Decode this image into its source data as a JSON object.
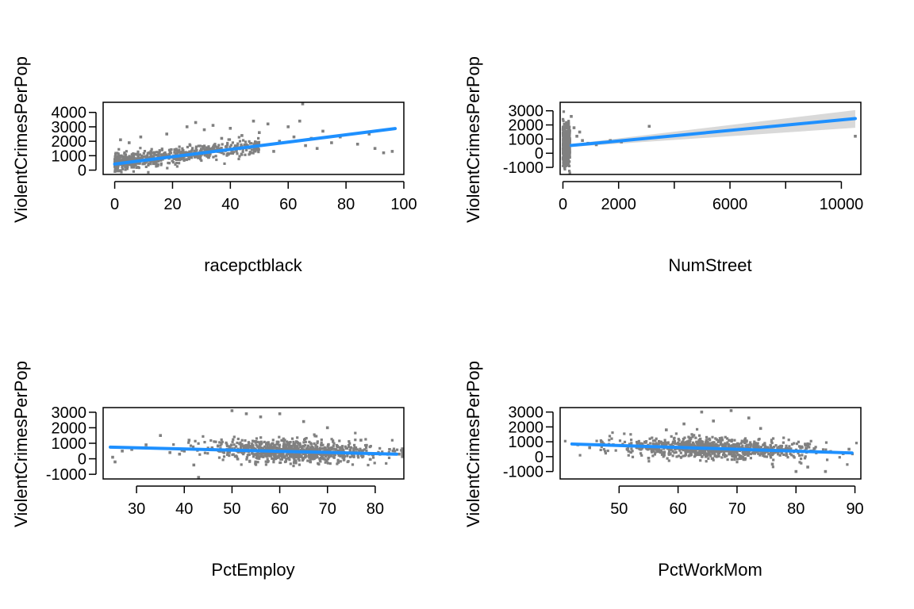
{
  "colors": {
    "points": "#808080",
    "fit_line": "#1E90FF",
    "confidence_band": "#D9D9D9",
    "axes": "#000000"
  },
  "chart_data": [
    {
      "type": "scatter",
      "title": "",
      "xlabel": "racepctblack",
      "ylabel": "ViolentCrimesPerPop",
      "xlim": [
        -4,
        100
      ],
      "ylim": [
        -300,
        4700
      ],
      "xticks": [
        0,
        20,
        40,
        60,
        80,
        100
      ],
      "yticks": [
        0,
        1000,
        2000,
        3000,
        4000
      ],
      "ytick_labels": [
        "0",
        "1000",
        "2000",
        "3000",
        "4000"
      ],
      "fit_line": {
        "x": [
          0,
          97
        ],
        "y": [
          420,
          2880
        ]
      },
      "band": null,
      "point_cloud": {
        "x_range": [
          0,
          50
        ],
        "y_center_start": 500,
        "y_center_end": 1700,
        "spread": 500,
        "count": 700
      },
      "points": [
        [
          2,
          2100
        ],
        [
          5,
          1900
        ],
        [
          9,
          2300
        ],
        [
          18,
          2500
        ],
        [
          25,
          3000
        ],
        [
          28,
          3300
        ],
        [
          31,
          2800
        ],
        [
          34,
          3100
        ],
        [
          37,
          2200
        ],
        [
          40,
          2900
        ],
        [
          44,
          2400
        ],
        [
          48,
          3400
        ],
        [
          50,
          2600
        ],
        [
          53,
          3200
        ],
        [
          55,
          1300
        ],
        [
          57,
          2000
        ],
        [
          60,
          3000
        ],
        [
          62,
          2300
        ],
        [
          64,
          3400
        ],
        [
          65,
          4750
        ],
        [
          66,
          1700
        ],
        [
          68,
          2200
        ],
        [
          70,
          1500
        ],
        [
          72,
          2700
        ],
        [
          75,
          1900
        ],
        [
          78,
          2300
        ],
        [
          84,
          1800
        ],
        [
          88,
          2500
        ],
        [
          90,
          1500
        ],
        [
          93,
          1200
        ],
        [
          96,
          1300
        ]
      ]
    },
    {
      "type": "scatter",
      "title": "",
      "xlabel": "NumStreet",
      "ylabel": "ViolentCrimesPerPop",
      "xlim": [
        -100,
        10700
      ],
      "ylim": [
        -1500,
        3600
      ],
      "xticks": [
        0,
        2000,
        4000,
        6000,
        8000,
        10000
      ],
      "xtick_labels": [
        "0",
        "2000",
        "",
        "6000",
        "",
        "10000"
      ],
      "yticks": [
        -1000,
        0,
        1000,
        2000,
        3000
      ],
      "ytick_labels": [
        "-1000",
        "0",
        "1000",
        "2000",
        "3000"
      ],
      "fit_line": {
        "x": [
          300,
          10500
        ],
        "y": [
          550,
          2450
        ]
      },
      "band": {
        "x": [
          300,
          10500
        ],
        "upper_start": 650,
        "upper_end": 3050,
        "lower_start": 450,
        "lower_end": 1800
      },
      "point_cloud": {
        "x_range": [
          0,
          250
        ],
        "y_center_start": 600,
        "y_center_end": 600,
        "spread": 1300,
        "count": 500
      },
      "points": [
        [
          300,
          2600
        ],
        [
          400,
          1800
        ],
        [
          500,
          1200
        ],
        [
          600,
          1500
        ],
        [
          700,
          900
        ],
        [
          900,
          700
        ],
        [
          1200,
          600
        ],
        [
          1700,
          900
        ],
        [
          2100,
          800
        ],
        [
          3100,
          1900
        ],
        [
          10500,
          1200
        ]
      ]
    },
    {
      "type": "scatter",
      "title": "",
      "xlabel": "PctEmploy",
      "ylabel": "ViolentCrimesPerPop",
      "xlim": [
        23,
        86
      ],
      "ylim": [
        -1300,
        3300
      ],
      "xticks": [
        30,
        40,
        50,
        60,
        70,
        80
      ],
      "yticks": [
        -1000,
        0,
        1000,
        2000,
        3000
      ],
      "ytick_labels": [
        "-1000",
        "0",
        "1000",
        "2000",
        "3000"
      ],
      "fit_line": {
        "x": [
          24.5,
          84.5
        ],
        "y": [
          750,
          300
        ]
      },
      "band": null,
      "point_cloud": {
        "x_range": [
          43,
          82
        ],
        "y_center_start": 650,
        "y_center_end": 350,
        "spread": 650,
        "count": 900
      },
      "points": [
        [
          25,
          100
        ],
        [
          25.5,
          -200
        ],
        [
          27,
          500
        ],
        [
          29,
          600
        ],
        [
          32,
          900
        ],
        [
          35,
          1500
        ],
        [
          37,
          400
        ],
        [
          39,
          300
        ],
        [
          40,
          500
        ],
        [
          41,
          1200
        ],
        [
          42,
          -400
        ],
        [
          43,
          -1200
        ],
        [
          50,
          3100
        ],
        [
          53,
          2900
        ],
        [
          56,
          2700
        ],
        [
          60,
          2900
        ],
        [
          65,
          2400
        ],
        [
          70,
          2000
        ],
        [
          77,
          1200
        ],
        [
          83,
          600
        ],
        [
          85,
          300
        ]
      ]
    },
    {
      "type": "scatter",
      "title": "",
      "xlabel": "PctWorkMom",
      "ylabel": "ViolentCrimesPerPop",
      "xlim": [
        40,
        91
      ],
      "ylim": [
        -1500,
        3300
      ],
      "xticks": [
        50,
        60,
        70,
        80,
        90
      ],
      "yticks": [
        -1000,
        0,
        1000,
        2000,
        3000
      ],
      "ytick_labels": [
        "-1000",
        "0",
        "1000",
        "2000",
        "3000"
      ],
      "fit_line": {
        "x": [
          42,
          89.5
        ],
        "y": [
          850,
          250
        ]
      },
      "band": null,
      "point_cloud": {
        "x_range": [
          48,
          85
        ],
        "y_center_start": 750,
        "y_center_end": 350,
        "spread": 650,
        "count": 900
      },
      "points": [
        [
          43,
          800
        ],
        [
          45,
          600
        ],
        [
          47,
          1000
        ],
        [
          49,
          800
        ],
        [
          52,
          300
        ],
        [
          55,
          -100
        ],
        [
          58,
          1800
        ],
        [
          61,
          2200
        ],
        [
          64,
          3000
        ],
        [
          66,
          2400
        ],
        [
          69,
          3100
        ],
        [
          72,
          2600
        ],
        [
          74,
          1900
        ],
        [
          76,
          -500
        ],
        [
          80,
          -1000
        ],
        [
          82,
          -700
        ],
        [
          85,
          -1000
        ],
        [
          88,
          200
        ],
        [
          89,
          500
        ]
      ]
    }
  ]
}
